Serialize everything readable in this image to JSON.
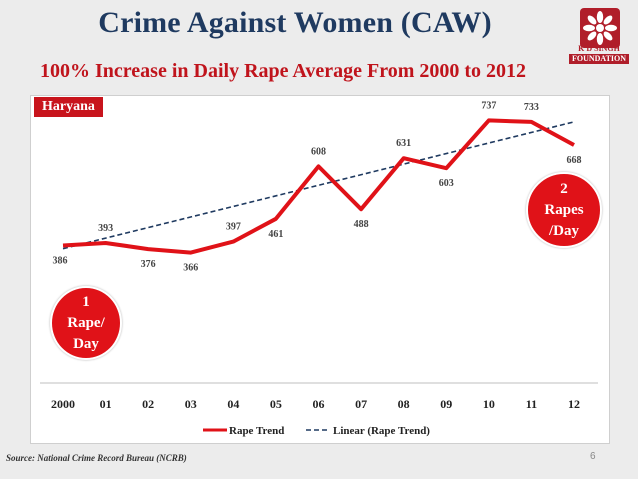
{
  "slide": {
    "title": "Crime Against Women (CAW)",
    "subtitle": "100% Increase in Daily Rape Average From 2000 to 2012",
    "region": "Haryana",
    "source": "Source: National Crime Record Bureau (NCRB)",
    "page_number": "6",
    "logo": {
      "line1": "K D SINGH",
      "line2": "FOUNDATION",
      "color": "#b01e2a"
    },
    "bubble_left": "1\nRape/\nDay",
    "bubble_right": "2\nRapes\n/Day"
  },
  "chart_data": {
    "type": "line",
    "categories": [
      "2000",
      "01",
      "02",
      "03",
      "04",
      "05",
      "06",
      "07",
      "08",
      "09",
      "10",
      "11",
      "12"
    ],
    "series": [
      {
        "name": "Rape Trend",
        "values": [
          386,
          393,
          376,
          366,
          397,
          461,
          608,
          488,
          631,
          603,
          737,
          733,
          668
        ],
        "color": "#e01218"
      },
      {
        "name": "Linear (Rape Trend)",
        "type": "trendline",
        "start": 377,
        "end": 733,
        "color": "#1f3a60"
      }
    ],
    "data_labels": [
      "386",
      "393",
      "376",
      "366",
      "397",
      "461",
      "608",
      "488",
      "631",
      "603",
      "737",
      "733",
      "668"
    ],
    "ylim": [
      0,
      800
    ],
    "legend_position": "bottom"
  }
}
